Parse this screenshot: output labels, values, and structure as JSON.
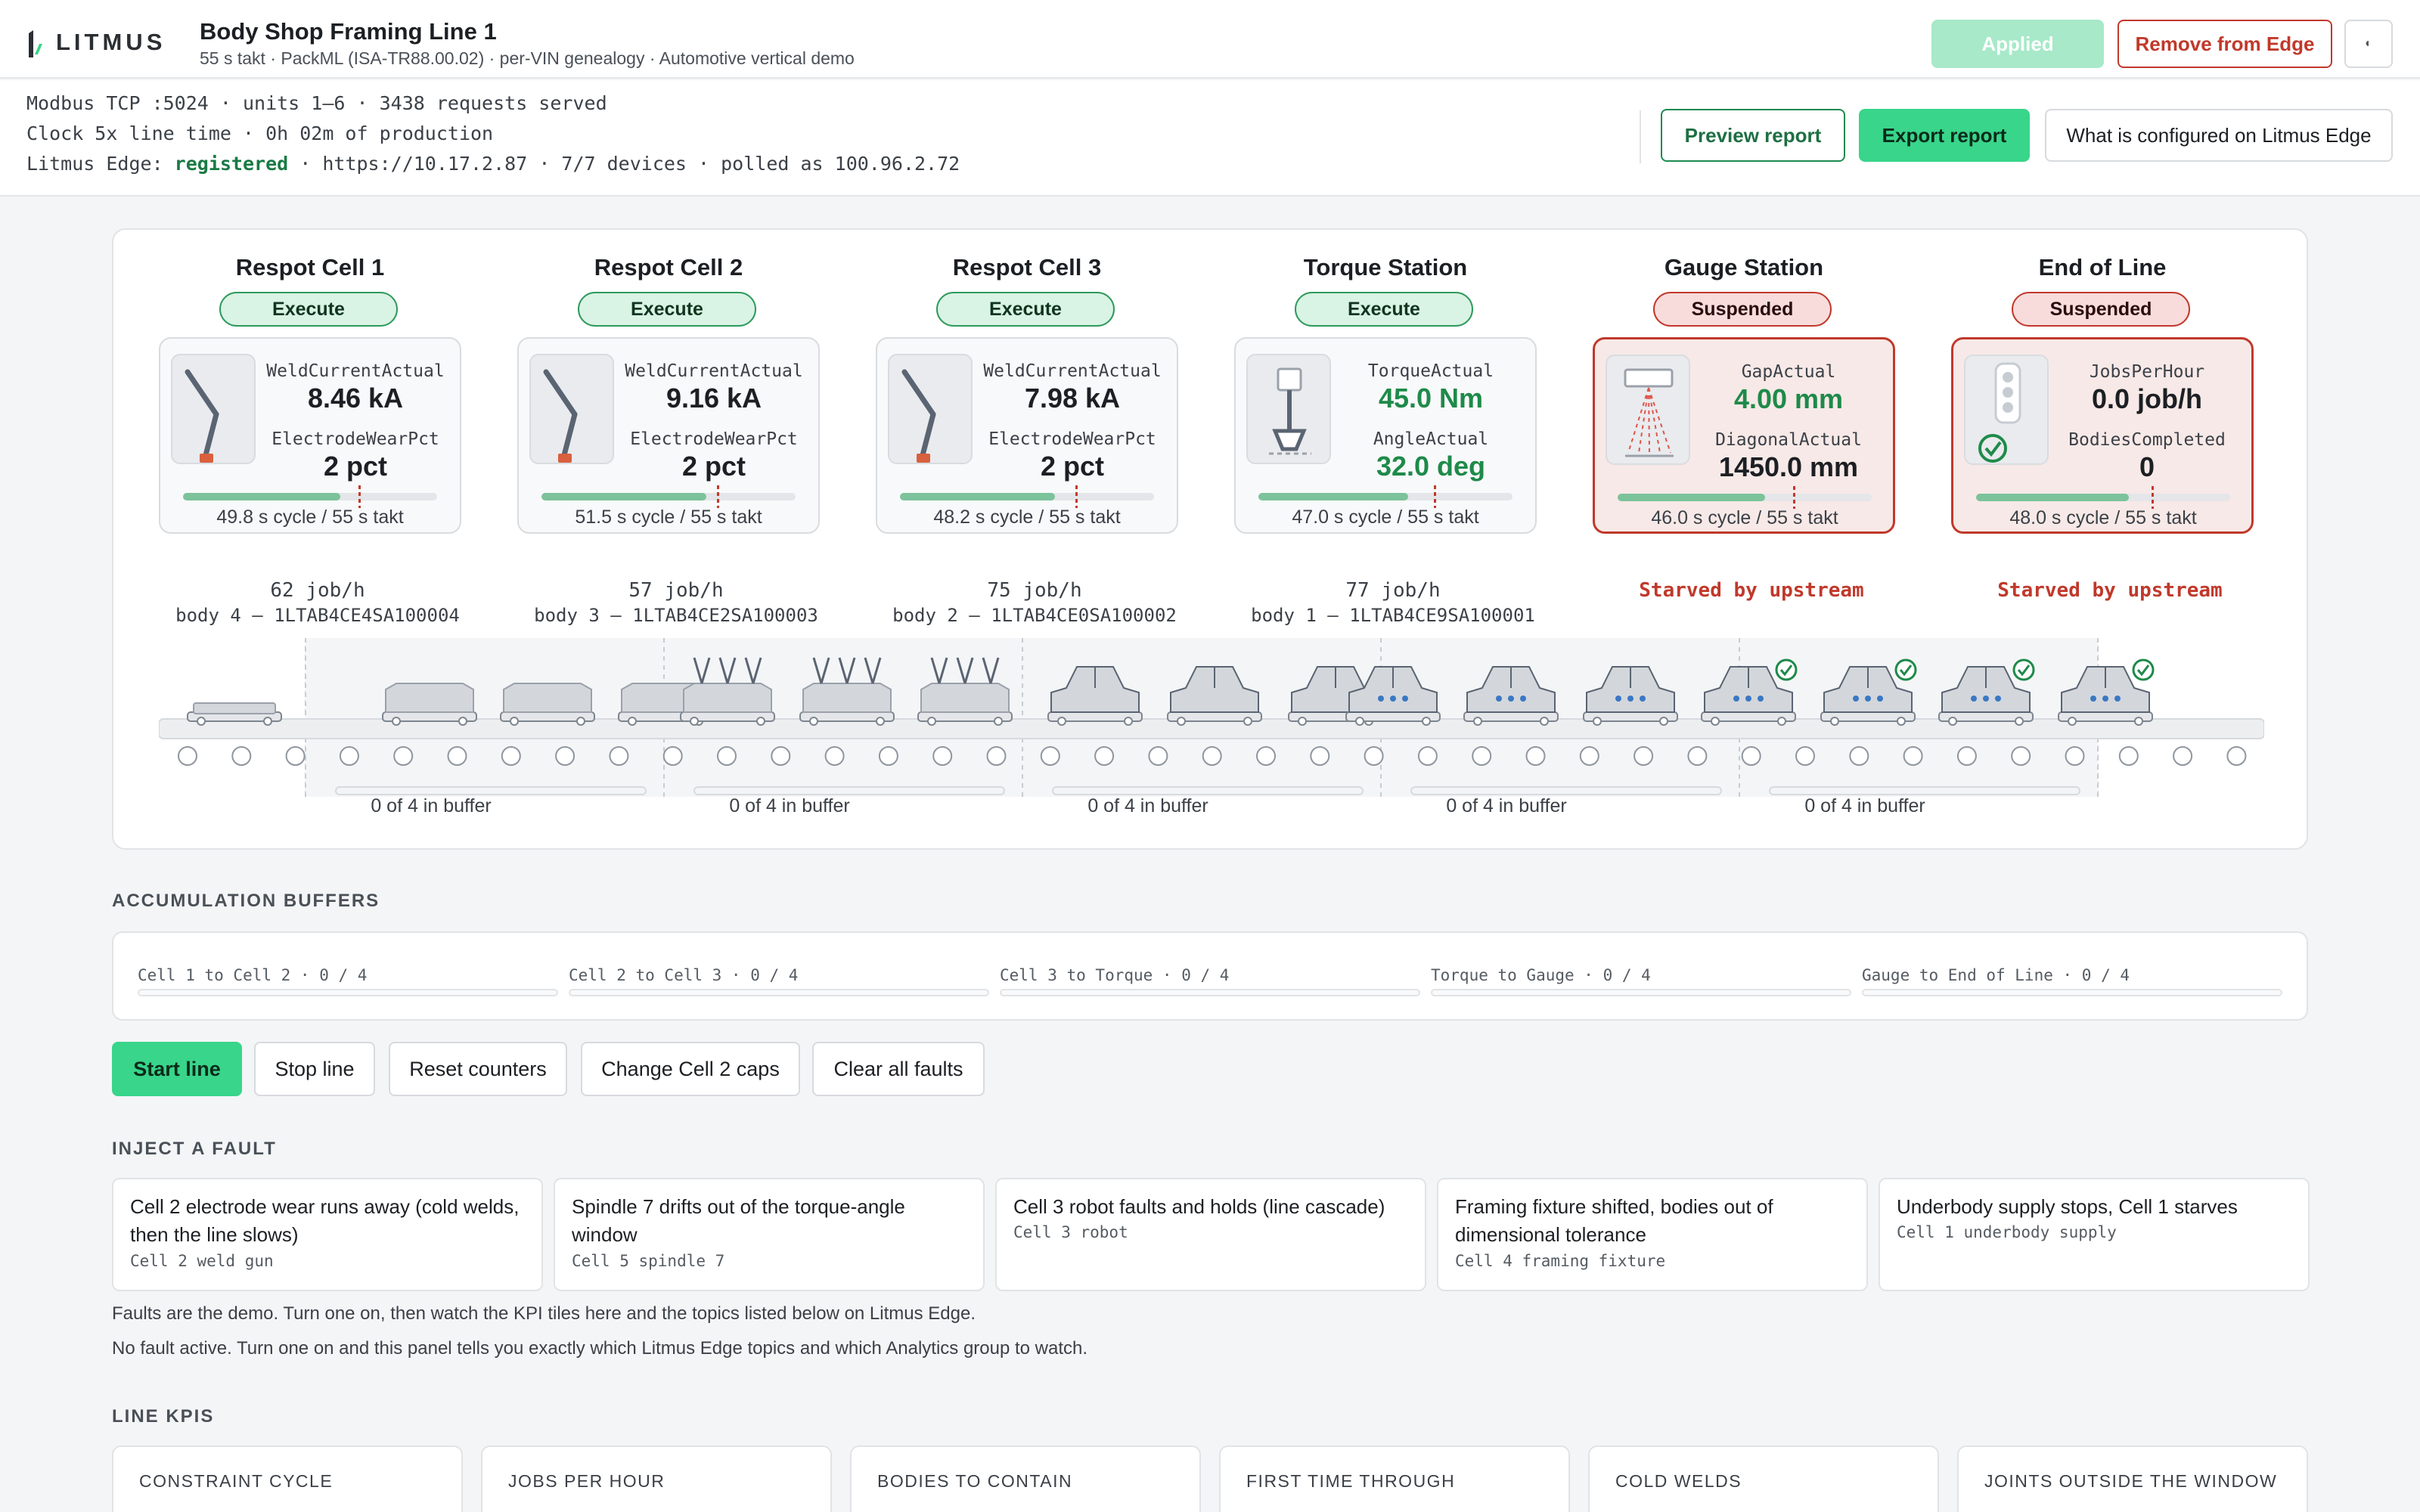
{
  "header": {
    "logo_text": "LITMUS",
    "title": "Body Shop Framing Line 1",
    "subtitle": "55 s takt · PackML (ISA-TR88.00.02) · per-VIN genealogy · Automotive vertical demo",
    "applied_label": "Applied",
    "remove_label": "Remove from Edge",
    "theme_glyph": "◐"
  },
  "info": {
    "line1": "Modbus TCP :5024 · units 1–6 · 3438 requests served",
    "line2": "Clock 5x line time · 0h 02m of production",
    "line3_prefix": "Litmus Edge: ",
    "line3_status": "registered",
    "line3_suffix": " · https://10.17.2.87 · 7/7 devices · polled as 100.96.2.72",
    "preview_label": "Preview report",
    "export_label": "Export report",
    "what_label": "What is configured on Litmus Edge"
  },
  "stations": [
    {
      "name": "Respot Cell 1",
      "state": "Execute",
      "kind": "exec",
      "icon": "robot-arm-icon",
      "l1": "WeldCurrentActual",
      "v1": "8.46 kA",
      "l2": "ElectrodeWearPct",
      "v2": "2 pct",
      "fill": 0.62,
      "takt_pos": 0.69,
      "cycle": "49.8 s cycle / 55 s takt",
      "rate": "62 job/h",
      "body": "body 4 — 1LTAB4CE4SA100004",
      "green": false
    },
    {
      "name": "Respot Cell 2",
      "state": "Execute",
      "kind": "exec",
      "icon": "robot-arm-icon",
      "l1": "WeldCurrentActual",
      "v1": "9.16 kA",
      "l2": "ElectrodeWearPct",
      "v2": "2 pct",
      "fill": 0.65,
      "takt_pos": 0.69,
      "cycle": "51.5 s cycle / 55 s takt",
      "rate": "57 job/h",
      "body": "body 3 — 1LTAB4CE2SA100003",
      "green": false
    },
    {
      "name": "Respot Cell 3",
      "state": "Execute",
      "kind": "exec",
      "icon": "robot-arm-icon",
      "l1": "WeldCurrentActual",
      "v1": "7.98 kA",
      "l2": "ElectrodeWearPct",
      "v2": "2 pct",
      "fill": 0.61,
      "takt_pos": 0.69,
      "cycle": "48.2 s cycle / 55 s takt",
      "rate": "75 job/h",
      "body": "body 2 — 1LTAB4CE0SA100002",
      "green": false
    },
    {
      "name": "Torque Station",
      "state": "Execute",
      "kind": "exec",
      "icon": "torque-spindle-icon",
      "l1": "TorqueActual",
      "v1": "45.0 Nm",
      "l2": "AngleActual",
      "v2": "32.0 deg",
      "fill": 0.59,
      "takt_pos": 0.69,
      "cycle": "47.0 s cycle / 55 s takt",
      "rate": "77 job/h",
      "body": "body 1 — 1LTAB4CE9SA100001",
      "green": true
    },
    {
      "name": "Gauge Station",
      "state": "Suspended",
      "kind": "susp",
      "icon": "laser-gauge-icon",
      "l1": "GapActual",
      "v1": "4.00 mm",
      "l2": "DiagonalActual",
      "v2": "1450.0 mm",
      "fill": 0.58,
      "takt_pos": 0.69,
      "cycle": "46.0 s cycle / 55 s takt",
      "rate": "Starved by upstream",
      "body": "",
      "green": true,
      "v2green": false
    },
    {
      "name": "End of Line",
      "state": "Suspended",
      "kind": "susp",
      "icon": "stack-light-icon",
      "l1": "JobsPerHour",
      "v1": "0.0 job/h",
      "l2": "BodiesCompleted",
      "v2": "0",
      "fill": 0.6,
      "takt_pos": 0.69,
      "cycle": "48.0 s cycle / 55 s takt",
      "rate": "Starved by upstream",
      "body": "",
      "green": false
    }
  ],
  "buffers_on_line": [
    "0 of 4 in buffer",
    "0 of 4 in buffer",
    "0 of 4 in buffer",
    "0 of 4 in buffer",
    "0 of 4 in buffer"
  ],
  "accumulation": {
    "heading": "ACCUMULATION BUFFERS",
    "items": [
      {
        "label": "Cell 1 to Cell 2 · 0 / 4",
        "fill": 0
      },
      {
        "label": "Cell 2 to Cell 3 · 0 / 4",
        "fill": 0
      },
      {
        "label": "Cell 3 to Torque · 0 / 4",
        "fill": 0
      },
      {
        "label": "Torque to Gauge · 0 / 4",
        "fill": 0
      },
      {
        "label": "Gauge to End of Line · 0 / 4",
        "fill": 0
      }
    ]
  },
  "controls": {
    "start": "Start line",
    "stop": "Stop line",
    "reset": "Reset counters",
    "caps": "Change Cell 2 caps",
    "clear": "Clear all faults"
  },
  "faults": {
    "heading": "INJECT A FAULT",
    "items": [
      {
        "title": "Cell 2 electrode wear runs away (cold welds, then the line slows)",
        "source": "Cell 2 weld gun"
      },
      {
        "title": "Spindle 7 drifts out of the torque-angle window",
        "source": "Cell 5 spindle 7"
      },
      {
        "title": "Cell 3 robot faults and holds (line cascade)",
        "source": "Cell 3 robot"
      },
      {
        "title": "Framing fixture shifted, bodies out of dimensional tolerance",
        "source": "Cell 4 framing fixture"
      },
      {
        "title": "Underbody supply stops, Cell 1 starves",
        "source": "Cell 1 underbody supply"
      }
    ],
    "note1": "Faults are the demo. Turn one on, then watch the KPI tiles here and the topics listed below on Litmus Edge.",
    "note2": "No fault active. Turn one on and this panel tells you exactly which Litmus Edge topics and which Analytics group to watch."
  },
  "kpis": {
    "heading": "LINE KPIS",
    "items": [
      "CONSTRAINT CYCLE",
      "JOBS PER HOUR",
      "BODIES TO CONTAIN",
      "FIRST TIME THROUGH",
      "COLD WELDS",
      "JOINTS OUTSIDE THE WINDOW"
    ]
  },
  "colors": {
    "accent_green": "#38d58a",
    "alert_red": "#c0392b",
    "ok_green": "#1e8a4a"
  }
}
